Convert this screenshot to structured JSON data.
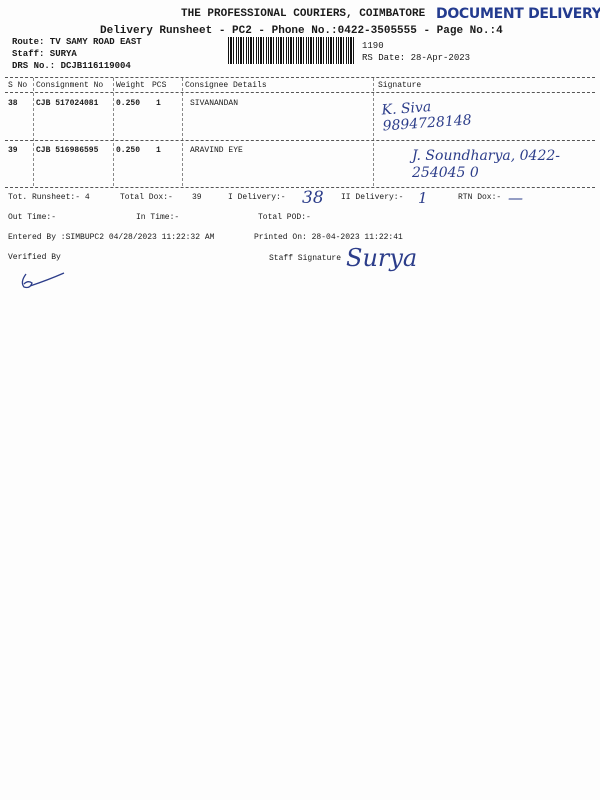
{
  "header": {
    "company": "THE PROFESSIONAL COURIERS, COIMBATORE",
    "subtitle": "Delivery Runsheet - PC2 - Phone No.:0422-3505555 - Page No.:4",
    "route": "Route: TV SAMY ROAD EAST",
    "staff": "Staff: SURYA",
    "drs_no": "DRS No.: DCJB116119004",
    "rs_no": "1190",
    "rs_date": "RS Date: 28-Apr-2023",
    "stamp": "DOCUMENT DELIVERY"
  },
  "table": {
    "columns": [
      "S No",
      "Consignment No",
      "Weight",
      "PCS",
      "Consignee Details",
      "Signature"
    ],
    "rows": [
      {
        "sno": "38",
        "consignment": "CJB 517024081",
        "weight": "0.250",
        "pcs": "1",
        "consignee": "SIVANANDAN",
        "signature": "K. Siva 9894728148"
      },
      {
        "sno": "39",
        "consignment": "CJB 516986595",
        "weight": "0.250",
        "pcs": "1",
        "consignee": "ARAVIND EYE",
        "signature": "J. Soundharya, 0422-254045 0"
      }
    ]
  },
  "totals": {
    "runsheet": "Tot. Runsheet:- 4",
    "total_dox": "Total Dox:-",
    "total_dox_value": "39",
    "i_delivery": "I Delivery:-",
    "i_delivery_value": "38",
    "ii_delivery": "II Delivery:-",
    "ii_delivery_value": "1",
    "rtn_dox": "RTN Dox:-",
    "rtn_dox_value": "—",
    "out_time": "Out Time:-",
    "in_time": "In Time:-",
    "total_pod": "Total POD:-"
  },
  "footer": {
    "entered_by": "Entered By :SIMBUPC2 04/28/2023 11:22:32 AM",
    "printed_on": "Printed On: 28-04-2023 11:22:41",
    "verified_by": "Verified By",
    "staff_signature": "Staff Signature",
    "staff_signature_hand": "Surya"
  }
}
